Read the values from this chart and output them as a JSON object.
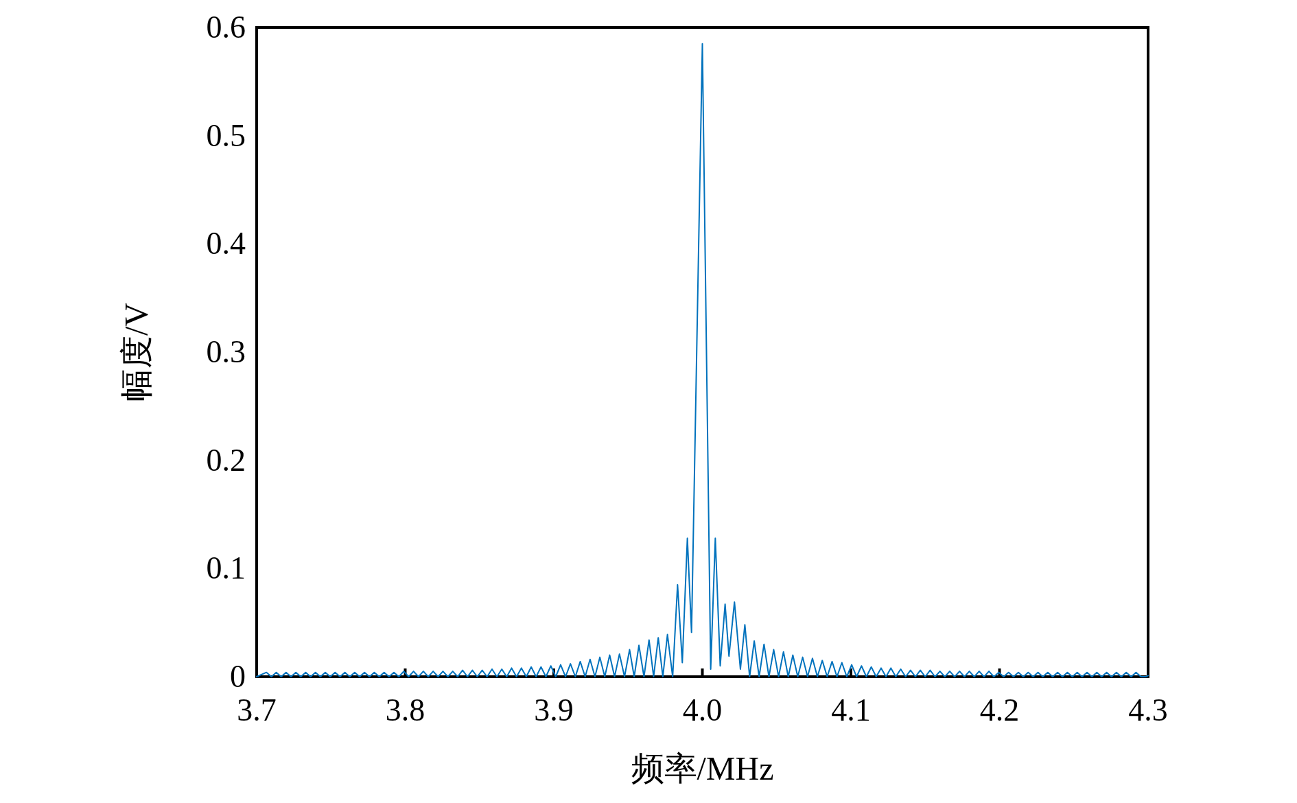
{
  "chart_data": {
    "type": "line",
    "xlabel": "频率/MHz",
    "ylabel": "幅度/V",
    "xlim": [
      3.7,
      4.3
    ],
    "ylim": [
      0,
      0.6
    ],
    "xticks": [
      3.7,
      3.8,
      3.9,
      {
        "value": 4,
        "label": "4.0"
      },
      4.1,
      4.2,
      4.3
    ],
    "yticks": [
      0,
      0.1,
      0.2,
      0.3,
      0.4,
      0.5,
      0.6
    ],
    "x": [
      3.7,
      3.7066,
      3.7099,
      3.7132,
      3.7165,
      3.7198,
      3.7231,
      3.7264,
      3.7297,
      3.733,
      3.7363,
      3.7396,
      3.7429,
      3.7462,
      3.7495,
      3.7528,
      3.7561,
      3.7594,
      3.7627,
      3.766,
      3.7693,
      3.7726,
      3.7759,
      3.7792,
      3.7825,
      3.7858,
      3.7891,
      3.7924,
      3.7957,
      3.799,
      3.8023,
      3.8056,
      3.8089,
      3.8122,
      3.8155,
      3.8188,
      3.8221,
      3.8254,
      3.8287,
      3.832,
      3.8353,
      3.8386,
      3.8419,
      3.8452,
      3.8485,
      3.8518,
      3.8551,
      3.8584,
      3.8617,
      3.865,
      3.8683,
      3.8716,
      3.8749,
      3.8782,
      3.8815,
      3.8848,
      3.8881,
      3.8914,
      3.8947,
      3.898,
      3.9013,
      3.9046,
      3.9079,
      3.9112,
      3.9145,
      3.9178,
      3.9211,
      3.9244,
      3.9277,
      3.931,
      3.9343,
      3.9376,
      3.9409,
      3.9442,
      3.9476,
      3.951,
      3.9541,
      3.9573,
      3.9607,
      3.9641,
      3.9672,
      3.9703,
      3.9734,
      3.9765,
      3.98,
      3.9833,
      3.9865,
      3.9899,
      3.9927,
      4.0,
      4.0056,
      4.0087,
      4.012,
      4.0153,
      4.0179,
      4.0216,
      4.0256,
      4.0286,
      4.0318,
      4.0349,
      4.0382,
      4.0415,
      4.0448,
      4.048,
      4.0513,
      4.0546,
      4.0578,
      4.0609,
      4.0642,
      4.0675,
      4.0708,
      4.0741,
      4.0774,
      4.0807,
      4.084,
      4.0873,
      4.0906,
      4.0939,
      4.0972,
      4.1005,
      4.1038,
      4.1071,
      4.1104,
      4.1137,
      4.117,
      4.1203,
      4.1236,
      4.1269,
      4.1302,
      4.1335,
      4.1368,
      4.1401,
      4.1434,
      4.1467,
      4.15,
      4.1533,
      4.1566,
      4.1599,
      4.1632,
      4.1665,
      4.1698,
      4.1731,
      4.1764,
      4.1797,
      4.183,
      4.1863,
      4.1896,
      4.1929,
      4.1962,
      4.1995,
      4.2028,
      4.2061,
      4.2094,
      4.2127,
      4.216,
      4.2193,
      4.2226,
      4.2259,
      4.2292,
      4.2325,
      4.2358,
      4.2391,
      4.2424,
      4.2457,
      4.249,
      4.2523,
      4.2556,
      4.2589,
      4.2622,
      4.2655,
      4.2688,
      4.2721,
      4.2754,
      4.2787,
      4.282,
      4.2853,
      4.2886,
      4.2919,
      4.2952,
      4.2985,
      4.3
    ],
    "series": [
      {
        "color": "#0072bd",
        "values": [
          0,
          0.004,
          0,
          0.004,
          0,
          0.004,
          0,
          0.004,
          0,
          0.004,
          0,
          0.004,
          0,
          0.004,
          0,
          0.004,
          0,
          0.004,
          0,
          0.004,
          0,
          0.004,
          0,
          0.004,
          0,
          0.004,
          0,
          0.004,
          0,
          0.005,
          0,
          0.005,
          0,
          0.005,
          0,
          0.005,
          0,
          0.005,
          0,
          0.005,
          0,
          0.006,
          0,
          0.006,
          0,
          0.006,
          0,
          0.007,
          0,
          0.007,
          0,
          0.008,
          0,
          0.008,
          0,
          0.009,
          0,
          0.009,
          0,
          0.01,
          0,
          0.011,
          0,
          0.012,
          0,
          0.014,
          0,
          0.016,
          0,
          0.018,
          0,
          0.02,
          0,
          0.021,
          0,
          0.025,
          0,
          0.029,
          0,
          0.034,
          0,
          0.036,
          0,
          0.039,
          0,
          0.085,
          0.013,
          0.128,
          0.041,
          0.585,
          0.007,
          0.128,
          0.01,
          0.067,
          0.019,
          0.069,
          0.007,
          0.048,
          0,
          0.033,
          0,
          0.03,
          0,
          0.025,
          0,
          0.023,
          0,
          0.02,
          0,
          0.018,
          0,
          0.017,
          0,
          0.015,
          0,
          0.014,
          0,
          0.013,
          0,
          0.011,
          0,
          0.01,
          0,
          0.009,
          0,
          0.008,
          0,
          0.008,
          0,
          0.007,
          0,
          0.006,
          0,
          0.006,
          0,
          0.006,
          0,
          0.005,
          0,
          0.005,
          0,
          0.005,
          0,
          0.005,
          0,
          0.005,
          0,
          0.005,
          0,
          0.004,
          0,
          0.004,
          0,
          0.004,
          0,
          0.004,
          0,
          0.004,
          0,
          0.004,
          0,
          0.004,
          0,
          0.004,
          0,
          0.004,
          0,
          0.004,
          0,
          0.004,
          0,
          0.004,
          0,
          0.004,
          0,
          0.004,
          0,
          0.004,
          0,
          0,
          0.001
        ]
      }
    ]
  }
}
